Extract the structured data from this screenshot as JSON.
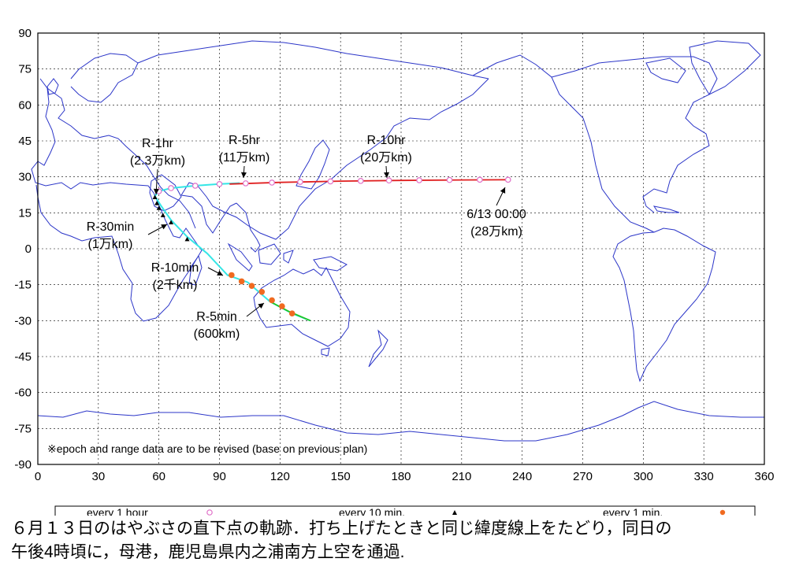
{
  "chart_data": {
    "type": "map",
    "projection": "equirectangular",
    "xlim": [
      0,
      360
    ],
    "ylim": [
      -90,
      90
    ],
    "x_ticks": [
      0,
      30,
      60,
      90,
      120,
      150,
      180,
      210,
      240,
      270,
      300,
      330,
      360
    ],
    "y_ticks": [
      90,
      75,
      60,
      45,
      30,
      15,
      0,
      -15,
      -30,
      -45,
      -60,
      -75,
      -90
    ],
    "grid": true,
    "track": {
      "cyan_segment": [
        [
          135,
          -30
        ],
        [
          126,
          -27
        ],
        [
          115,
          -22
        ],
        [
          104,
          -14
        ],
        [
          94,
          -11
        ],
        [
          84,
          -2
        ],
        [
          74,
          5
        ],
        [
          66,
          12
        ],
        [
          61,
          18
        ],
        [
          58,
          22
        ],
        [
          60,
          24
        ],
        [
          66,
          25.3
        ],
        [
          78,
          26.3
        ],
        [
          90,
          27
        ],
        [
          100,
          27.4
        ]
      ],
      "green_segment": [
        [
          115,
          -22
        ],
        [
          124,
          -26
        ],
        [
          135,
          -30
        ]
      ],
      "red_segment": [
        [
          95,
          27
        ],
        [
          120,
          27.7
        ],
        [
          150,
          28.2
        ],
        [
          180,
          28.5
        ],
        [
          210,
          28.7
        ],
        [
          233,
          28.8
        ]
      ],
      "every_1_hour": [
        [
          60,
          24
        ],
        [
          66,
          25.3
        ],
        [
          78,
          26.3
        ],
        [
          90,
          27
        ],
        [
          103,
          27.3
        ],
        [
          116,
          27.6
        ],
        [
          130,
          27.9
        ],
        [
          145,
          28.1
        ],
        [
          160,
          28.3
        ],
        [
          174,
          28.5
        ],
        [
          189,
          28.6
        ],
        [
          204,
          28.7
        ],
        [
          219,
          28.8
        ],
        [
          233,
          28.8
        ]
      ],
      "every_10_min": [
        [
          58,
          21.5
        ],
        [
          59,
          19
        ],
        [
          60,
          17
        ],
        [
          62,
          14
        ],
        [
          66,
          11
        ],
        [
          74,
          4
        ]
      ],
      "every_1_min": [
        [
          96,
          -11
        ],
        [
          101,
          -13.6
        ],
        [
          106,
          -15.5
        ],
        [
          111,
          -18
        ],
        [
          116,
          -21.5
        ],
        [
          121,
          -24
        ],
        [
          126,
          -27
        ]
      ]
    },
    "annotations": [
      {
        "lines": [
          "R-1hr",
          "(2.3万km)"
        ],
        "point": [
          58,
          22
        ]
      },
      {
        "lines": [
          "R-5hr",
          "(11万km)"
        ],
        "point": [
          103,
          27.3
        ]
      },
      {
        "lines": [
          "R-10hr",
          "(20万km)"
        ],
        "point": [
          174,
          28.5
        ]
      },
      {
        "lines": [
          "6/13 00:00",
          "(28万km)"
        ],
        "point": [
          233,
          28.8
        ]
      },
      {
        "lines": [
          "R-30min",
          "(1万km)"
        ],
        "point": [
          66,
          11
        ]
      },
      {
        "lines": [
          "R-10min",
          "(2千km)"
        ],
        "point": [
          96,
          -11
        ]
      },
      {
        "lines": [
          "R-5min",
          "(600km)"
        ],
        "point": [
          116,
          -21.5
        ]
      }
    ],
    "note": "※epoch and range data are to be revised   (base on previous plan)",
    "legend": [
      {
        "label": "every  1 hour",
        "marker": "open-circle",
        "color": "#e070c8"
      },
      {
        "label": "every 10 min.",
        "marker": "triangle",
        "color": "#000000"
      },
      {
        "label": "every  1 min.",
        "marker": "filled-circle",
        "color": "#f06a20"
      }
    ],
    "colors": {
      "coast": "#2b35c8",
      "track_cyan": "#34e6e6",
      "track_red": "#e02020",
      "track_green": "#22c422"
    }
  },
  "caption": {
    "line1": "６月１３日のはやぶさの直下点の軌跡．打ち上げたときと同じ緯度線上をたどり，同日の",
    "line2": "午後4時頃に，母港，鹿児島県内之浦南方上空を通過."
  }
}
